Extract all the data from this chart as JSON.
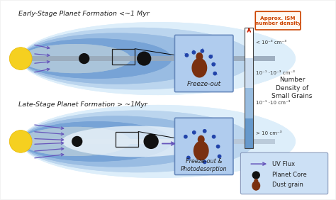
{
  "bg_color": "#f2f2f2",
  "title1": "Early-Stage Planet Formation <~1 Myr",
  "title2": "Late-Stage Planet Formation > ~1Myr",
  "freeze_out_label": "Freeze-out",
  "freeze_photo_label": "Freeze-out &\nPhotodesorption",
  "approx_ism_label": "Approx. ISM\nnumber density",
  "density_labels": [
    "< 10⁻³ cm⁻³",
    "10⁻¹ ·10⁻³ cm⁻³",
    "10⁻¹ ·10 cm⁻³",
    "> 10 cm⁻³"
  ],
  "colorbar_label": "Number\nDensity of\nSmall Grains",
  "legend_items": [
    "UV Flux",
    "Planet Core",
    "Dust grain"
  ],
  "star_color": "#f5d020",
  "star_edge": "#e8b800",
  "arrow_color": "#6655bb",
  "dust_color": "#7a3010",
  "bar_colors": [
    "#ffffff",
    "#ccddf0",
    "#99bde0",
    "#6699cc"
  ],
  "ism_box_color": "#cc4400",
  "legend_box_color": "#cce0f5",
  "disk_colors": [
    "#ddeefa",
    "#bbd5ee",
    "#99bce2",
    "#77a3d6",
    "#ddecf8"
  ],
  "midplane_color": "#9aaabb",
  "molecule_color": "#2244aa"
}
